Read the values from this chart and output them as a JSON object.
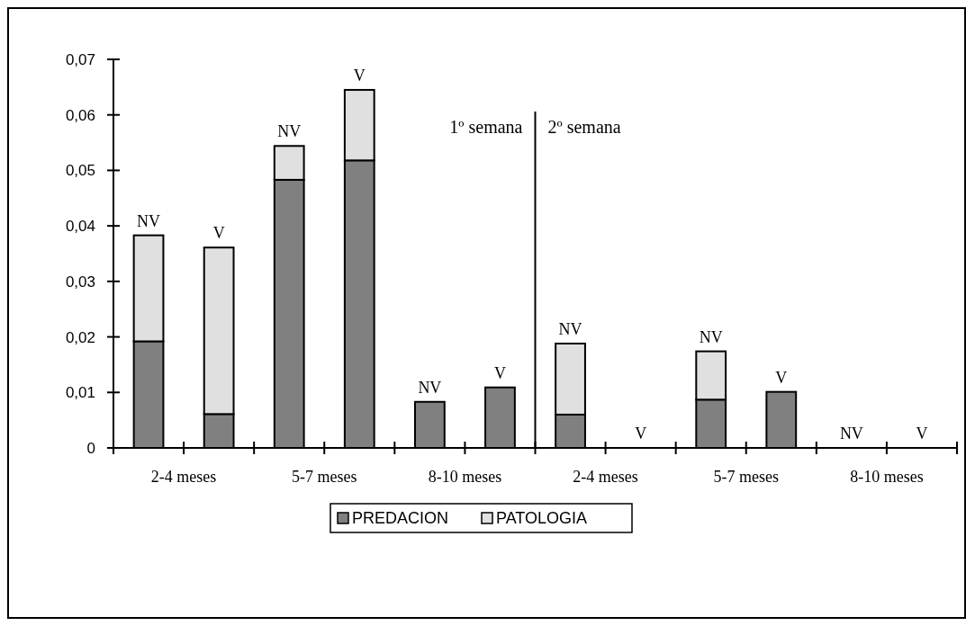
{
  "chart_data": {
    "type": "bar",
    "stacked": true,
    "categories": [
      "NV",
      "V",
      "NV",
      "V",
      "NV",
      "V",
      "NV",
      "V",
      "NV",
      "V",
      "NV",
      "V"
    ],
    "series": [
      {
        "name": "PREDACION",
        "color": "#808080",
        "values": [
          0.0192,
          0.0061,
          0.0483,
          0.0518,
          0.0083,
          0.0109,
          0.006,
          0,
          0.0087,
          0.0101,
          0,
          0
        ]
      },
      {
        "name": "PATOLOGIA",
        "color": "#e0e0e0",
        "values": [
          0.0191,
          0.03,
          0.0061,
          0.0127,
          0,
          0,
          0.0128,
          0,
          0.0087,
          0,
          0,
          0
        ]
      }
    ],
    "ylim": [
      0,
      0.07
    ],
    "yticks": [
      {
        "value": 0,
        "label": "0"
      },
      {
        "value": 0.01,
        "label": "0,01"
      },
      {
        "value": 0.02,
        "label": "0,02"
      },
      {
        "value": 0.03,
        "label": "0,03"
      },
      {
        "value": 0.04,
        "label": "0,04"
      },
      {
        "value": 0.05,
        "label": "0,05"
      },
      {
        "value": 0.06,
        "label": "0,06"
      },
      {
        "value": 0.07,
        "label": "0,07"
      }
    ],
    "annotations": [
      "2-4 meses",
      "5-7 meses",
      "8-10 meses",
      "2-4 meses",
      "5-7 meses",
      "8-10 meses",
      "1º semana",
      "2º semana"
    ],
    "grid": false,
    "legend": "bottom"
  }
}
